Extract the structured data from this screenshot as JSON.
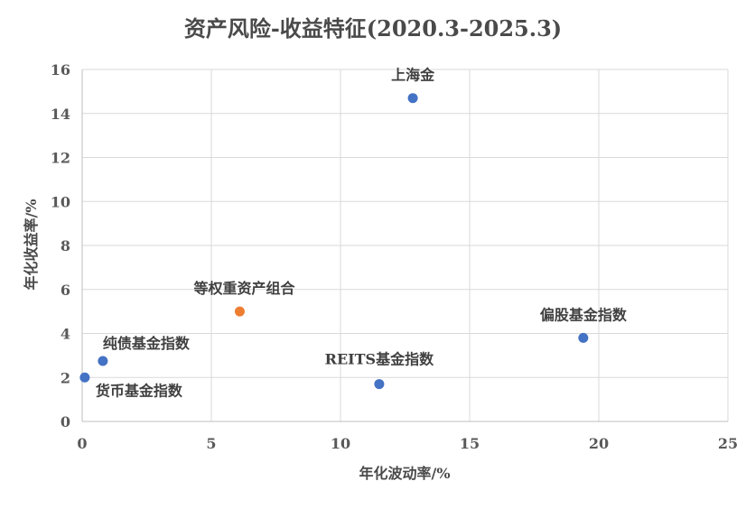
{
  "chart_data": {
    "type": "scatter",
    "title": "资产风险-收益特征(2020.3-2025.3)",
    "xlabel": "年化波动率/%",
    "ylabel": "年化收益率/%",
    "xlim": [
      0,
      25
    ],
    "ylim": [
      0,
      16
    ],
    "x_ticks": [
      "0",
      "5",
      "10",
      "15",
      "20",
      "25"
    ],
    "y_ticks": [
      "0",
      "2",
      "4",
      "6",
      "8",
      "10",
      "12",
      "14",
      "16"
    ],
    "grid": true,
    "points": [
      {
        "label": "上海金",
        "x": 12.8,
        "y": 14.7,
        "color": "#4472c4"
      },
      {
        "label": "等权重资产组合",
        "x": 6.1,
        "y": 5.0,
        "color": "#ed7d31"
      },
      {
        "label": "偏股基金指数",
        "x": 19.4,
        "y": 3.8,
        "color": "#4472c4"
      },
      {
        "label": "纯债基金指数",
        "x": 0.8,
        "y": 2.75,
        "color": "#4472c4"
      },
      {
        "label": "REITS基金指数",
        "x": 11.5,
        "y": 1.7,
        "color": "#4472c4"
      },
      {
        "label": "货币基金指数",
        "x": 0.1,
        "y": 2.0,
        "color": "#4472c4"
      }
    ]
  }
}
